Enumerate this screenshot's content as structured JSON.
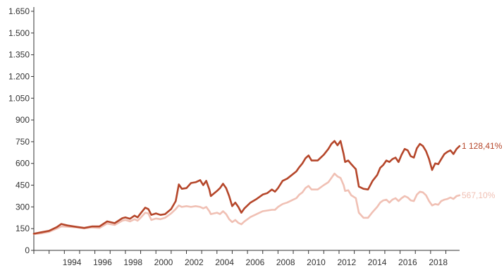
{
  "chart_data": {
    "type": "line",
    "title": "",
    "xlabel": "",
    "ylabel": "",
    "xlim": [
      1992.0,
      2019.9
    ],
    "ylim": [
      0,
      1650
    ],
    "y_ticks": [
      0,
      150,
      300,
      450,
      600,
      750,
      900,
      1050,
      1200,
      1350,
      1500,
      1650
    ],
    "y_tick_labels": [
      "0",
      "150",
      "300",
      "450",
      "600",
      "750",
      "900",
      "1.050",
      "1.200",
      "1.350",
      "1.500",
      "1.650"
    ],
    "x_tick_labels": [
      "1994",
      "1996",
      "1998",
      "2000",
      "2002",
      "2004",
      "2006",
      "2008",
      "2010",
      "2012",
      "2014",
      "2016",
      "2018"
    ],
    "grid": false,
    "legend": "none",
    "series": [
      {
        "color": "#b5462a",
        "end_label": "1 128,41%",
        "points": [
          [
            1992.0,
            115
          ],
          [
            1992.5,
            125
          ],
          [
            1993.0,
            135
          ],
          [
            1993.5,
            160
          ],
          [
            1993.8,
            182
          ],
          [
            1994.2,
            172
          ],
          [
            1994.8,
            162
          ],
          [
            1995.3,
            155
          ],
          [
            1995.8,
            165
          ],
          [
            1996.3,
            165
          ],
          [
            1996.8,
            200
          ],
          [
            1997.3,
            188
          ],
          [
            1997.8,
            222
          ],
          [
            1998.0,
            228
          ],
          [
            1998.3,
            218
          ],
          [
            1998.6,
            240
          ],
          [
            1998.8,
            228
          ],
          [
            1999.0,
            255
          ],
          [
            1999.3,
            295
          ],
          [
            1999.5,
            285
          ],
          [
            1999.7,
            245
          ],
          [
            2000.0,
            255
          ],
          [
            2000.3,
            245
          ],
          [
            2000.6,
            250
          ],
          [
            2001.0,
            285
          ],
          [
            2001.3,
            340
          ],
          [
            2001.5,
            455
          ],
          [
            2001.7,
            425
          ],
          [
            2002.0,
            430
          ],
          [
            2002.3,
            465
          ],
          [
            2002.6,
            470
          ],
          [
            2002.9,
            485
          ],
          [
            2003.1,
            450
          ],
          [
            2003.3,
            480
          ],
          [
            2003.5,
            420
          ],
          [
            2003.6,
            375
          ],
          [
            2004.0,
            410
          ],
          [
            2004.2,
            430
          ],
          [
            2004.4,
            460
          ],
          [
            2004.6,
            430
          ],
          [
            2004.8,
            375
          ],
          [
            2005.0,
            305
          ],
          [
            2005.2,
            330
          ],
          [
            2005.4,
            300
          ],
          [
            2005.6,
            260
          ],
          [
            2005.8,
            290
          ],
          [
            2006.2,
            330
          ],
          [
            2006.6,
            355
          ],
          [
            2007.0,
            385
          ],
          [
            2007.3,
            395
          ],
          [
            2007.6,
            420
          ],
          [
            2007.8,
            405
          ],
          [
            2008.0,
            430
          ],
          [
            2008.3,
            480
          ],
          [
            2008.6,
            495
          ],
          [
            2008.9,
            520
          ],
          [
            2009.2,
            545
          ],
          [
            2009.4,
            575
          ],
          [
            2009.6,
            600
          ],
          [
            2009.8,
            635
          ],
          [
            2010.0,
            655
          ],
          [
            2010.2,
            620
          ],
          [
            2010.6,
            620
          ],
          [
            2011.0,
            660
          ],
          [
            2011.3,
            700
          ],
          [
            2011.5,
            735
          ],
          [
            2011.7,
            755
          ],
          [
            2011.9,
            725
          ],
          [
            2012.1,
            755
          ],
          [
            2012.3,
            665
          ],
          [
            2012.4,
            610
          ],
          [
            2012.6,
            620
          ],
          [
            2012.8,
            595
          ],
          [
            2013.1,
            560
          ],
          [
            2013.3,
            440
          ],
          [
            2013.6,
            425
          ],
          [
            2013.9,
            420
          ],
          [
            2014.2,
            480
          ],
          [
            2014.5,
            520
          ],
          [
            2014.7,
            570
          ],
          [
            2014.9,
            590
          ],
          [
            2015.1,
            620
          ],
          [
            2015.3,
            610
          ],
          [
            2015.5,
            630
          ],
          [
            2015.7,
            640
          ],
          [
            2015.9,
            610
          ],
          [
            2016.1,
            660
          ],
          [
            2016.3,
            700
          ],
          [
            2016.5,
            690
          ],
          [
            2016.7,
            650
          ],
          [
            2016.9,
            640
          ],
          [
            2017.1,
            705
          ],
          [
            2017.3,
            735
          ],
          [
            2017.5,
            720
          ],
          [
            2017.7,
            685
          ],
          [
            2017.9,
            630
          ],
          [
            2018.1,
            555
          ],
          [
            2018.3,
            600
          ],
          [
            2018.5,
            595
          ],
          [
            2018.7,
            630
          ],
          [
            2018.9,
            665
          ],
          [
            2019.1,
            680
          ],
          [
            2019.3,
            690
          ],
          [
            2019.5,
            665
          ],
          [
            2019.7,
            700
          ],
          [
            2019.9,
            720
          ]
        ]
      },
      {
        "color": "#f0c0b4",
        "end_label": "567,10%",
        "points": [
          [
            1992.0,
            112
          ],
          [
            1992.5,
            118
          ],
          [
            1993.0,
            128
          ],
          [
            1993.5,
            150
          ],
          [
            1993.8,
            165
          ],
          [
            1994.2,
            163
          ],
          [
            1994.8,
            158
          ],
          [
            1995.3,
            152
          ],
          [
            1995.8,
            158
          ],
          [
            1996.3,
            155
          ],
          [
            1996.8,
            185
          ],
          [
            1997.3,
            175
          ],
          [
            1997.8,
            205
          ],
          [
            1998.0,
            210
          ],
          [
            1998.3,
            200
          ],
          [
            1998.6,
            215
          ],
          [
            1998.8,
            205
          ],
          [
            1999.0,
            225
          ],
          [
            1999.3,
            260
          ],
          [
            1999.5,
            255
          ],
          [
            1999.7,
            210
          ],
          [
            2000.0,
            220
          ],
          [
            2000.3,
            215
          ],
          [
            2000.6,
            225
          ],
          [
            2001.0,
            255
          ],
          [
            2001.3,
            285
          ],
          [
            2001.5,
            310
          ],
          [
            2001.7,
            300
          ],
          [
            2002.0,
            305
          ],
          [
            2002.3,
            300
          ],
          [
            2002.6,
            305
          ],
          [
            2002.9,
            300
          ],
          [
            2003.1,
            290
          ],
          [
            2003.3,
            300
          ],
          [
            2003.5,
            270
          ],
          [
            2003.6,
            250
          ],
          [
            2004.0,
            260
          ],
          [
            2004.2,
            250
          ],
          [
            2004.4,
            270
          ],
          [
            2004.6,
            250
          ],
          [
            2004.8,
            215
          ],
          [
            2005.0,
            195
          ],
          [
            2005.2,
            210
          ],
          [
            2005.4,
            190
          ],
          [
            2005.6,
            180
          ],
          [
            2005.8,
            200
          ],
          [
            2006.2,
            230
          ],
          [
            2006.6,
            250
          ],
          [
            2007.0,
            270
          ],
          [
            2007.3,
            275
          ],
          [
            2007.6,
            280
          ],
          [
            2007.8,
            280
          ],
          [
            2008.0,
            300
          ],
          [
            2008.3,
            320
          ],
          [
            2008.6,
            330
          ],
          [
            2008.9,
            345
          ],
          [
            2009.2,
            360
          ],
          [
            2009.4,
            385
          ],
          [
            2009.6,
            400
          ],
          [
            2009.8,
            430
          ],
          [
            2010.0,
            445
          ],
          [
            2010.2,
            420
          ],
          [
            2010.6,
            420
          ],
          [
            2011.0,
            450
          ],
          [
            2011.3,
            470
          ],
          [
            2011.5,
            500
          ],
          [
            2011.7,
            530
          ],
          [
            2011.9,
            510
          ],
          [
            2012.1,
            500
          ],
          [
            2012.3,
            450
          ],
          [
            2012.4,
            410
          ],
          [
            2012.6,
            415
          ],
          [
            2012.8,
            380
          ],
          [
            2013.1,
            360
          ],
          [
            2013.3,
            260
          ],
          [
            2013.6,
            225
          ],
          [
            2013.9,
            225
          ],
          [
            2014.2,
            265
          ],
          [
            2014.5,
            300
          ],
          [
            2014.7,
            330
          ],
          [
            2014.9,
            345
          ],
          [
            2015.1,
            350
          ],
          [
            2015.3,
            330
          ],
          [
            2015.5,
            350
          ],
          [
            2015.7,
            360
          ],
          [
            2015.9,
            340
          ],
          [
            2016.1,
            360
          ],
          [
            2016.3,
            375
          ],
          [
            2016.5,
            365
          ],
          [
            2016.7,
            345
          ],
          [
            2016.9,
            340
          ],
          [
            2017.1,
            385
          ],
          [
            2017.3,
            405
          ],
          [
            2017.5,
            400
          ],
          [
            2017.7,
            380
          ],
          [
            2017.9,
            340
          ],
          [
            2018.1,
            310
          ],
          [
            2018.3,
            320
          ],
          [
            2018.5,
            315
          ],
          [
            2018.7,
            340
          ],
          [
            2018.9,
            350
          ],
          [
            2019.1,
            355
          ],
          [
            2019.3,
            365
          ],
          [
            2019.5,
            355
          ],
          [
            2019.7,
            375
          ],
          [
            2019.9,
            380
          ]
        ]
      }
    ]
  }
}
